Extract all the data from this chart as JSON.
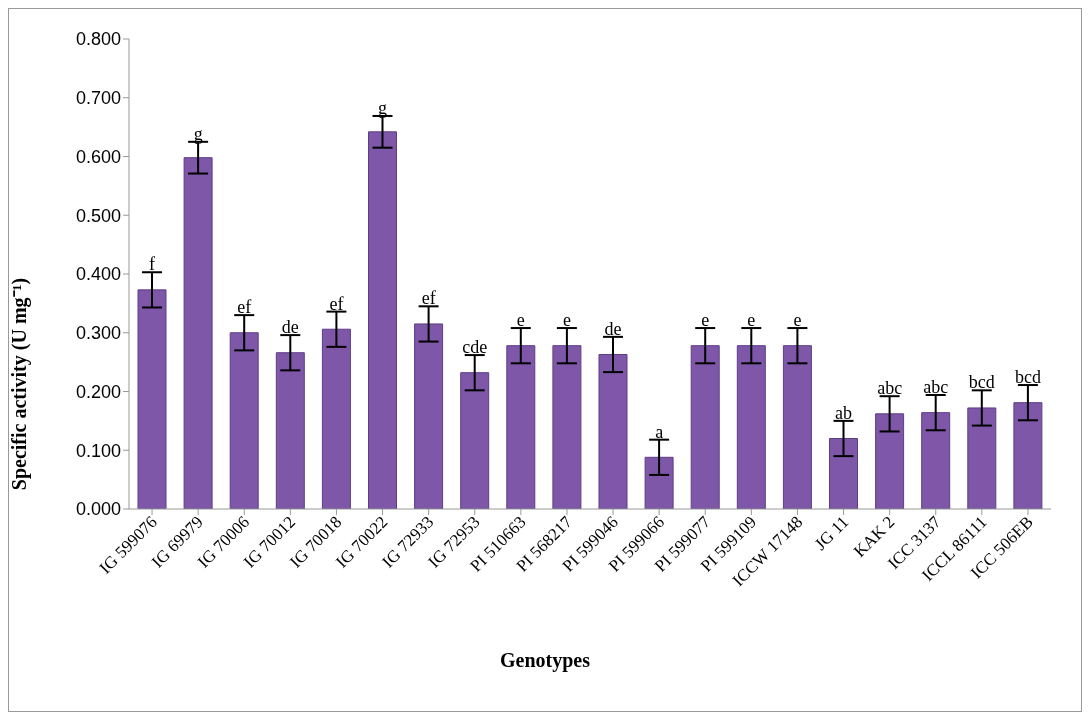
{
  "chart_data": {
    "type": "bar",
    "xlabel": "Genotypes",
    "ylabel": "Specific activity (U mg⁻¹)",
    "categories": [
      "IG 599076",
      "IG 69979",
      "IG 70006",
      "IG 70012",
      "IG 70018",
      "IG 70022",
      "IG 72933",
      "IG 72953",
      "PI 510663",
      "PI 568217",
      "PI 599046",
      "PI 599066",
      "PI 599077",
      "PI 599109",
      "ICCW 17148",
      "JG 11",
      "KAK 2",
      "ICC 3137",
      "ICCL 86111",
      "ICC 506EB"
    ],
    "values": [
      0.373,
      0.598,
      0.3,
      0.266,
      0.306,
      0.642,
      0.315,
      0.232,
      0.278,
      0.278,
      0.263,
      0.088,
      0.278,
      0.278,
      0.278,
      0.12,
      0.162,
      0.164,
      0.172,
      0.181
    ],
    "errors": [
      0.03,
      0.027,
      0.03,
      0.03,
      0.03,
      0.027,
      0.03,
      0.03,
      0.03,
      0.03,
      0.03,
      0.03,
      0.03,
      0.03,
      0.03,
      0.03,
      0.03,
      0.03,
      0.03,
      0.03
    ],
    "color": "#7e57a8",
    "ylim": [
      0,
      0.8
    ],
    "yticks": [
      {
        "value": 0,
        "label": "0.000"
      },
      {
        "value": 0.1,
        "label": "0.100"
      },
      {
        "value": 0.2,
        "label": "0.200"
      },
      {
        "value": 0.3,
        "label": "0.300"
      },
      {
        "value": 0.4,
        "label": "0.400"
      },
      {
        "value": 0.5,
        "label": "0.500"
      },
      {
        "value": 0.6,
        "label": "0.600"
      },
      {
        "value": 0.7,
        "label": "0.700"
      },
      {
        "value": 0.8,
        "label": "0.800"
      }
    ],
    "grid": false,
    "legend": false,
    "annotations": [
      {
        "text": "f",
        "x": "IG 599076",
        "y": 0.403
      },
      {
        "text": "g",
        "x": "IG 69979",
        "y": 0.625
      },
      {
        "text": "ef",
        "x": "IG 70006",
        "y": 0.33
      },
      {
        "text": "de",
        "x": "IG 70012",
        "y": 0.296
      },
      {
        "text": "ef",
        "x": "IG 70018",
        "y": 0.336
      },
      {
        "text": "g",
        "x": "IG 70022",
        "y": 0.669
      },
      {
        "text": "ef",
        "x": "IG 72933",
        "y": 0.345
      },
      {
        "text": "cde",
        "x": "IG 72953",
        "y": 0.262
      },
      {
        "text": "e",
        "x": "PI 510663",
        "y": 0.308
      },
      {
        "text": "e",
        "x": "PI 568217",
        "y": 0.308
      },
      {
        "text": "de",
        "x": "PI 599046",
        "y": 0.293
      },
      {
        "text": "a",
        "x": "PI 599066",
        "y": 0.118
      },
      {
        "text": "e",
        "x": "PI 599077",
        "y": 0.308
      },
      {
        "text": "e",
        "x": "PI 599109",
        "y": 0.308
      },
      {
        "text": "e",
        "x": "ICCW 17148",
        "y": 0.308
      },
      {
        "text": "ab",
        "x": "JG 11",
        "y": 0.15
      },
      {
        "text": "abc",
        "x": "KAK 2",
        "y": 0.192
      },
      {
        "text": "abc",
        "x": "ICC 3137",
        "y": 0.194
      },
      {
        "text": "bcd",
        "x": "ICCL 86111",
        "y": 0.202
      },
      {
        "text": "bcd",
        "x": "ICC 506EB",
        "y": 0.211
      }
    ]
  }
}
